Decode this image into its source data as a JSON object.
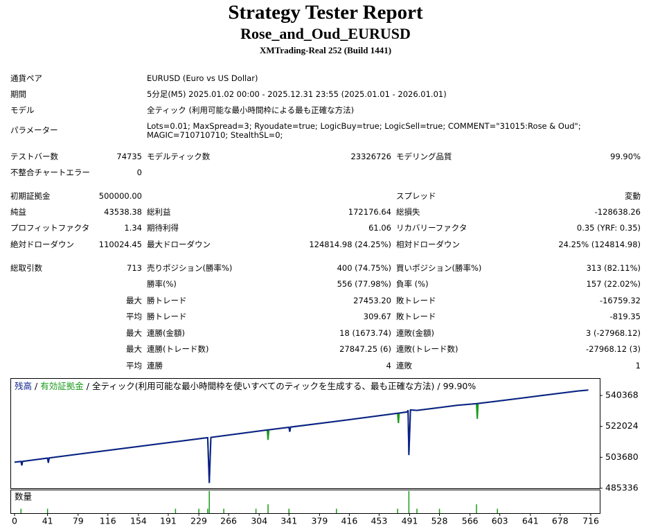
{
  "header": {
    "title": "Strategy Tester Report",
    "subtitle": "Rose_and_Oud_EURUSD",
    "build": "XMTrading-Real 252 (Build 1441)"
  },
  "info": [
    [
      "通貨ペア",
      "EURUSD (Euro vs US Dollar)"
    ],
    [
      "期間",
      "5分足(M5) 2025.01.02 00:00 - 2025.12.31 23:55 (2025.01.01 - 2026.01.01)"
    ],
    [
      "モデル",
      "全ティック (利用可能な最小時間枠による最も正確な方法)"
    ],
    [
      "パラメーター",
      "Lots=0.01; MaxSpread=3; Ryoudate=true; LogicBuy=true; LogicSell=true; COMMENT=\"31015:Rose & Oud\"; MAGIC=710710710; StealthSL=0;"
    ]
  ],
  "stats": [
    [
      "テストバー数",
      "74735",
      "モデルティック数",
      "23326726",
      "モデリング品質",
      "99.90%"
    ],
    [
      "不整合チャートエラー",
      "0",
      null,
      null,
      null,
      null
    ],
    [
      "初期証拠金",
      "500000.00",
      null,
      null,
      "スプレッド",
      "変動"
    ],
    [
      "純益",
      "43538.38",
      "総利益",
      "172176.64",
      "総損失",
      "-128638.26"
    ],
    [
      "プロフィットファクタ",
      "1.34",
      "期待利得",
      "61.06",
      "リカバリーファクタ",
      "0.35 (YRF: 0.35)"
    ],
    [
      "絶対ドローダウン",
      "110024.45",
      "最大ドローダウン",
      "124814.98 (24.25%)",
      "相対ドローダウン",
      "24.25% (124814.98)"
    ],
    [
      "総取引数",
      "713",
      "売りポジション(勝率%)",
      "400 (74.75%)",
      "買いポジション(勝率%)",
      "313 (82.11%)"
    ],
    [
      null,
      null,
      "勝率(%)",
      "556 (77.98%)",
      "負率 (%)",
      "157 (22.02%)"
    ],
    [
      null,
      "最大",
      "勝トレード",
      "27453.20",
      "敗トレード",
      "-16759.32"
    ],
    [
      null,
      "平均",
      "勝トレード",
      "309.67",
      "敗トレード",
      "-819.35"
    ],
    [
      null,
      "最大",
      "連勝(金額)",
      "18 (1673.74)",
      "連敗(金額)",
      "3 (-27968.12)"
    ],
    [
      null,
      "最大",
      "連勝(トレード数)",
      "27847.25 (6)",
      "連敗(トレード数)",
      "-27968.12 (3)"
    ],
    [
      null,
      "平均",
      "連勝",
      "4",
      "連敗",
      "1"
    ]
  ],
  "chart_data": {
    "type": "line",
    "legend_separator": "/",
    "model_label": "全ティック(利用可能な最小時間枠を使いすべてのティックを生成する、最も正確な方法)",
    "quality": "99.90%",
    "x": [
      0,
      8,
      9,
      10,
      41,
      42,
      43,
      100,
      200,
      238,
      240,
      242,
      244,
      300,
      314,
      315,
      316,
      341,
      342,
      343,
      400,
      450,
      476,
      477,
      478,
      488,
      489,
      490,
      492,
      500,
      550,
      574,
      575,
      576,
      600,
      650,
      700,
      713
    ],
    "series": [
      {
        "name": "有効証拠金",
        "color": "#1a9a1a",
        "values": [
          500800,
          501200,
          498900,
          501250,
          503200,
          500400,
          503300,
          506800,
          512900,
          515200,
          515300,
          488400,
          515500,
          519000,
          519900,
          514000,
          520000,
          521500,
          518800,
          521600,
          525000,
          528200,
          529800,
          524000,
          529900,
          530600,
          531600,
          505000,
          531800,
          531500,
          534500,
          535500,
          526500,
          535600,
          537000,
          540000,
          543000,
          543600
        ]
      },
      {
        "name": "残高",
        "color": "#0d1f8c",
        "values": [
          500800,
          501200,
          498900,
          501250,
          503200,
          500400,
          503300,
          506800,
          512900,
          515200,
          515300,
          488400,
          515500,
          519000,
          519900,
          519950,
          520000,
          521500,
          518800,
          521600,
          525000,
          528200,
          529800,
          529850,
          529900,
          530600,
          531600,
          505000,
          531800,
          531500,
          534500,
          535500,
          535550,
          535600,
          537000,
          540000,
          543000,
          543600
        ]
      }
    ],
    "xlim": [
      0,
      716
    ],
    "xticks": [
      0,
      41,
      79,
      116,
      154,
      191,
      229,
      266,
      304,
      341,
      379,
      416,
      453,
      491,
      528,
      566,
      603,
      641,
      678,
      716
    ],
    "ylim": [
      485336,
      550650
    ],
    "yticks": [
      540368,
      522024,
      503680,
      485336
    ],
    "volume": {
      "label": "数量",
      "color": "#1a9a1a",
      "ylim": [
        0,
        0.05
      ],
      "x": [
        8,
        41,
        200,
        229,
        240,
        242,
        260,
        300,
        315,
        341,
        400,
        476,
        490,
        500,
        528,
        574,
        600
      ],
      "values": [
        0.01,
        0.01,
        0.01,
        0.01,
        0.01,
        0.05,
        0.01,
        0.01,
        0.02,
        0.01,
        0.01,
        0.01,
        0.05,
        0.01,
        0.01,
        0.02,
        0.01
      ]
    }
  }
}
